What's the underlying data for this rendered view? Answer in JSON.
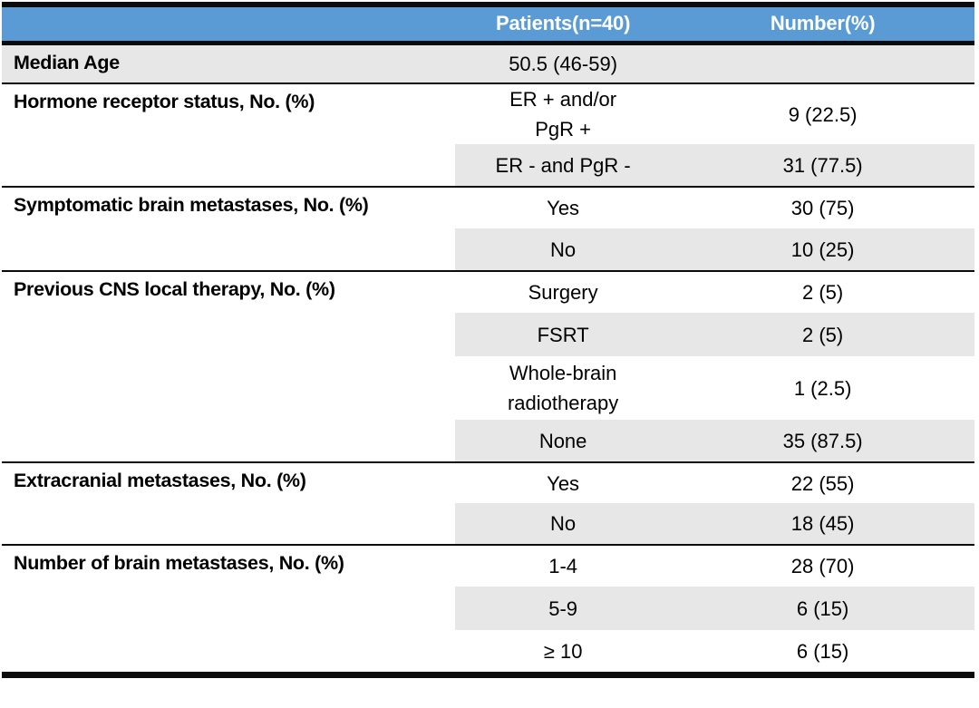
{
  "colors": {
    "header_bg": "#5b9bd5",
    "header_text": "#ffffff",
    "shade": "#e8e7e7",
    "rule": "#0b0b0b",
    "text": "#000000"
  },
  "table": {
    "header": {
      "col1": "",
      "col2": "Patients(n=40)",
      "col3": "Number(%)"
    },
    "sections": [
      {
        "category": "Median Age",
        "rows": [
          {
            "patients": "50.5 (46-59)",
            "number": "",
            "shaded": true
          }
        ]
      },
      {
        "category": "Hormone receptor status, No. (%)",
        "rows": [
          {
            "patients": "ER + and/or\nPgR +",
            "number": "9 (22.5)",
            "shaded": false
          },
          {
            "patients": "ER - and PgR -",
            "number": "31 (77.5)",
            "shaded": true
          }
        ]
      },
      {
        "category": "Symptomatic brain metastases, No. (%)",
        "rows": [
          {
            "patients": "Yes",
            "number": "30 (75)",
            "shaded": false
          },
          {
            "patients": "No",
            "number": "10 (25)",
            "shaded": true
          }
        ]
      },
      {
        "category": "Previous CNS local therapy, No. (%)",
        "rows": [
          {
            "patients": "Surgery",
            "number": "2 (5)",
            "shaded": false
          },
          {
            "patients": "FSRT",
            "number": "2 (5)",
            "shaded": true
          },
          {
            "patients": "Whole-brain\nradiotherapy",
            "number": "1 (2.5)",
            "shaded": false
          },
          {
            "patients": "None",
            "number": "35 (87.5)",
            "shaded": true
          }
        ]
      },
      {
        "category": "Extracranial metastases, No. (%)",
        "rows": [
          {
            "patients": "Yes",
            "number": "22 (55)",
            "shaded": false
          },
          {
            "patients": "No",
            "number": "18 (45)",
            "shaded": true
          }
        ]
      },
      {
        "category": "Number of brain metastases, No. (%)",
        "rows": [
          {
            "patients": "1-4",
            "number": "28 (70)",
            "shaded": false
          },
          {
            "patients": "5-9",
            "number": "6 (15)",
            "shaded": true
          },
          {
            "patients": "≥ 10",
            "number": "6 (15)",
            "shaded": false
          }
        ]
      }
    ]
  }
}
